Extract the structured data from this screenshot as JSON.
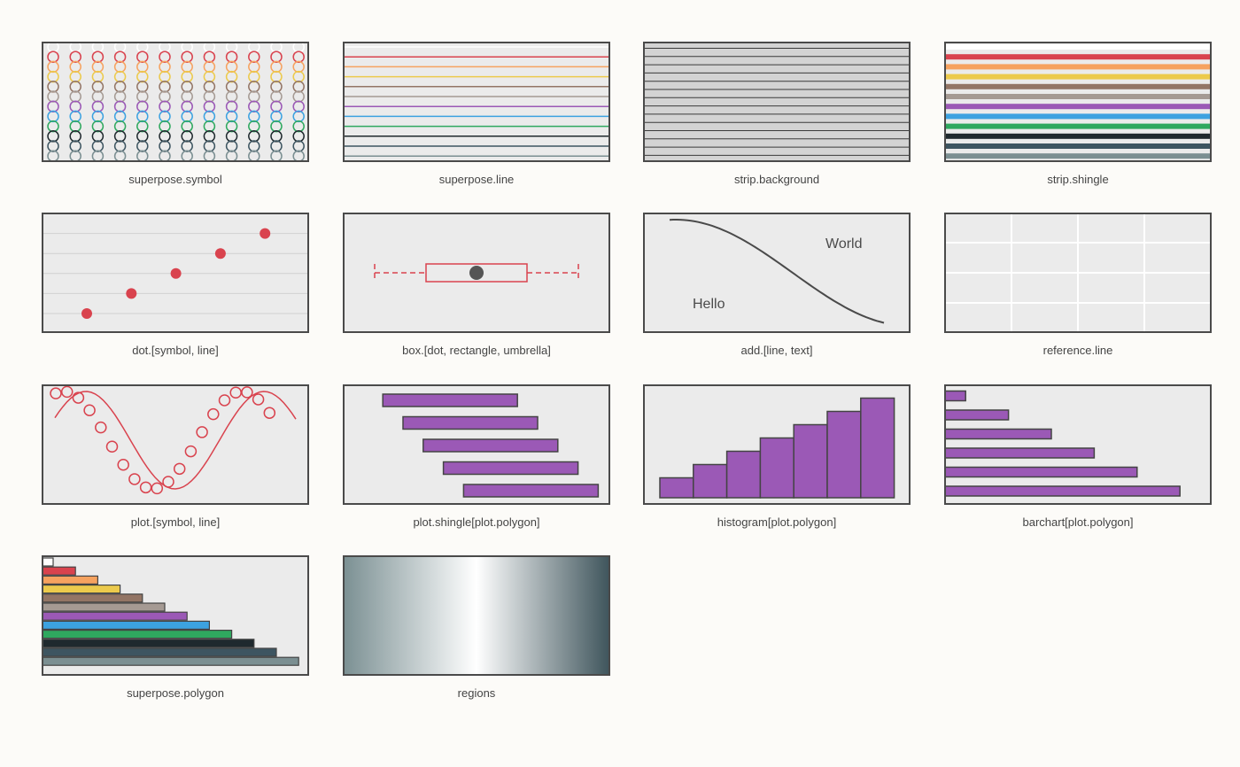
{
  "palette": {
    "background": "#fcfbf8",
    "panel_fill": "#ebebeb",
    "frame": "#4a4a4a",
    "caption_color": "#444444",
    "accent_red": "#d9434e",
    "accent_purple": "#9b59b6",
    "superpose": [
      "#ffffff",
      "#d9434e",
      "#f6a25f",
      "#ecca4c",
      "#937565",
      "#a59a93",
      "#9b59b6",
      "#3ca2e0",
      "#2fa85f",
      "#1f292e",
      "#3d5561",
      "#7b8f92"
    ],
    "regions": [
      "#7b9093",
      "#ffffff",
      "#3f555c"
    ]
  },
  "panels": [
    {
      "caption": "superpose.symbol",
      "kind": "symbol-grid",
      "columns": 12
    },
    {
      "caption": "superpose.line",
      "kind": "line-stack"
    },
    {
      "caption": "strip.background",
      "kind": "strip-background",
      "fill": "#d3d3d3"
    },
    {
      "caption": "strip.shingle",
      "kind": "strip-shingle"
    },
    {
      "caption": "dot.[symbol, line]",
      "kind": "dot-plot",
      "values": [
        1,
        2,
        3,
        4,
        5
      ]
    },
    {
      "caption": "box.[dot, rectangle, umbrella]",
      "kind": "box-plot"
    },
    {
      "caption": "add.[line, text]",
      "kind": "line-text",
      "texts": [
        "Hello",
        "World"
      ]
    },
    {
      "caption": "reference.line",
      "kind": "reference-grid"
    },
    {
      "caption": "plot.[symbol, line]",
      "kind": "symbol-line"
    },
    {
      "caption": "plot.shingle[plot.polygon]",
      "kind": "shingle-bars",
      "bars": [
        [
          0.2,
          2.2
        ],
        [
          0.5,
          2.5
        ],
        [
          0.8,
          2.8
        ],
        [
          1.1,
          3.1
        ],
        [
          1.4,
          3.4
        ]
      ]
    },
    {
      "caption": "histogram[plot.polygon]",
      "kind": "histogram",
      "values": [
        1.5,
        2.5,
        3.5,
        4.5,
        5.5,
        6.5,
        7.5
      ]
    },
    {
      "caption": "barchart[plot.polygon]",
      "kind": "barchart",
      "values": [
        1,
        3,
        5,
        7,
        9,
        11
      ]
    },
    {
      "caption": "superpose.polygon",
      "kind": "polygon-stack"
    },
    {
      "caption": "regions",
      "kind": "regions-gradient"
    }
  ]
}
